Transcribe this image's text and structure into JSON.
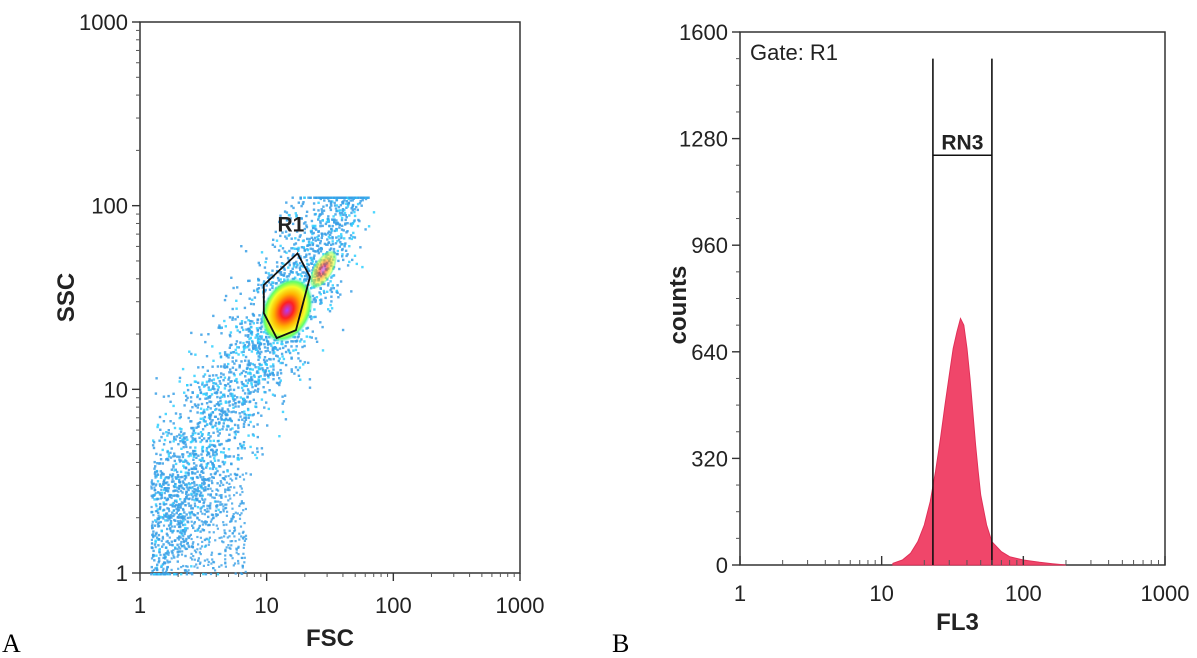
{
  "chart_data": [
    {
      "panel": "A",
      "type": "scatter",
      "title": "",
      "xlabel": "FSC",
      "ylabel": "SSC",
      "xscale": "log",
      "yscale": "log",
      "xlim": [
        1,
        1000
      ],
      "ylim": [
        1,
        1000
      ],
      "xticks": [
        "1",
        "10",
        "100",
        "1000"
      ],
      "yticks": [
        "1",
        "10",
        "100",
        "1000"
      ],
      "grid": false,
      "colormap": [
        "#3aa0e6",
        "#2fd0ff",
        "#7dff6a",
        "#ffff30",
        "#ff8a00",
        "#ff1a1a",
        "#c040ff"
      ],
      "point_color": "#3aa0e6",
      "gate": {
        "name": "R1",
        "shape": "polygon",
        "color": "#111111",
        "vertices": [
          [
            12,
            19
          ],
          [
            9.5,
            26
          ],
          [
            9.5,
            37
          ],
          [
            17.5,
            55
          ],
          [
            22,
            41
          ],
          [
            17,
            21
          ]
        ]
      },
      "density_regions": [
        {
          "x": [
            1.2,
            7
          ],
          "y": [
            1,
            5
          ],
          "level": "low"
        },
        {
          "x": [
            10,
            30
          ],
          "y": [
            15,
            60
          ],
          "level": "high"
        },
        {
          "x": [
            12,
            18
          ],
          "y": [
            20,
            33
          ],
          "level": "peak"
        }
      ]
    },
    {
      "panel": "B",
      "type": "area",
      "title": "",
      "xlabel": "FL3",
      "ylabel": "counts",
      "xscale": "log",
      "yscale": "linear",
      "xlim": [
        1,
        1000
      ],
      "ylim": [
        0,
        1600
      ],
      "xticks": [
        "1",
        "10",
        "100",
        "1000"
      ],
      "yticks": [
        "0",
        "320",
        "640",
        "960",
        "1280",
        "1600"
      ],
      "grid": false,
      "fill_color": "#f0466a",
      "annotation": "Gate: R1",
      "marker": {
        "name": "RN3",
        "x_range": [
          23,
          60
        ],
        "bar_y": 1230,
        "line_top": 1520
      },
      "x": [
        12,
        14,
        16,
        18,
        20,
        22,
        24,
        26,
        28,
        30,
        32,
        34,
        36,
        38,
        40,
        42,
        44,
        46,
        48,
        50,
        55,
        60,
        70,
        80,
        100,
        130,
        160,
        200
      ],
      "values": [
        5,
        15,
        35,
        70,
        120,
        190,
        280,
        380,
        480,
        570,
        650,
        700,
        740,
        720,
        650,
        560,
        460,
        360,
        280,
        210,
        120,
        70,
        40,
        25,
        15,
        8,
        4,
        0
      ]
    }
  ],
  "panels": {
    "a_letter": "A",
    "b_letter": "B"
  }
}
